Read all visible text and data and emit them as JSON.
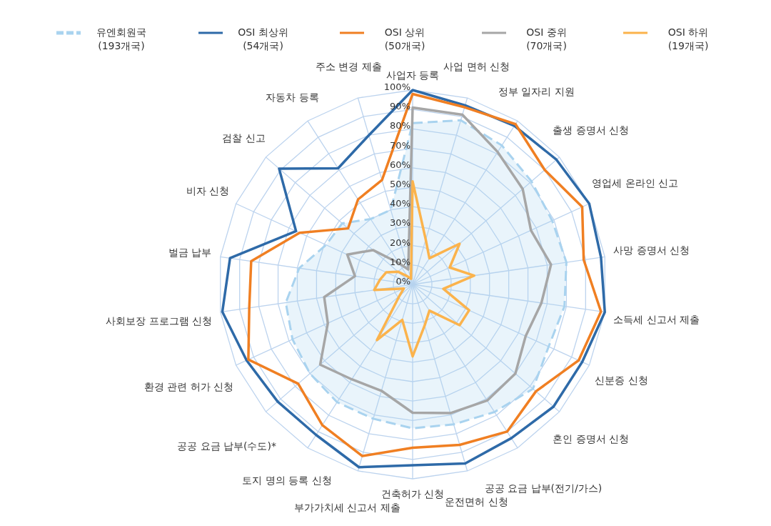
{
  "chart_data": {
    "type": "radar",
    "categories": [
      "사업자 등록",
      "사업 면허 신청",
      "정부 일자리 지원",
      "출생 증명서 신청",
      "영업세 온라인 신고",
      "사망 증명서 신청",
      "소득세 신고서 제출",
      "신분증 신청",
      "혼인 증명서 신청",
      "공공 요금 납부(전기/가스)",
      "운전면허 신청",
      "건축허가 신청",
      "부가가치세 신고서 제출",
      "토지 명의 등록 신청",
      "공공 요금 납부(수도)*",
      "환경 관련 허가 신청",
      "사회보장 프로그램 신청",
      "벌금 납부",
      "비자 신청",
      "검찰 신고",
      "자동차 등록",
      "주소 변경 제출"
    ],
    "series": [
      {
        "name": "유엔회원국 (193개국)",
        "type": "area",
        "color": "#a9d3ef",
        "line_style": "dashed",
        "values": [
          83,
          88,
          85,
          81,
          79,
          80,
          79,
          77,
          82,
          78,
          75,
          74,
          72,
          72,
          70,
          68,
          66,
          59,
          49,
          48,
          40,
          40
        ]
      },
      {
        "name": "OSI 최상위 (54개국)",
        "color": "#2e6aa8",
        "line_style": "solid",
        "values": [
          100,
          96,
          97,
          98,
          100,
          98,
          100,
          96,
          96,
          94,
          96,
          93,
          98,
          92,
          92,
          94,
          99,
          95,
          66,
          91,
          71,
          80
        ]
      },
      {
        "name": "OSI 상위 (50개국)",
        "color": "#f07f22",
        "line_style": "solid",
        "values": [
          98,
          95,
          98,
          90,
          96,
          89,
          98,
          94,
          84,
          90,
          86,
          84,
          92,
          86,
          78,
          93,
          85,
          84,
          64,
          44,
          52,
          56
        ]
      },
      {
        "name": "OSI 중위 (70개국)",
        "color": "#a6a6a6",
        "line_style": "solid",
        "values": [
          91,
          91,
          81,
          75,
          67,
          72,
          67,
          64,
          70,
          71,
          69,
          66,
          57,
          58,
          63,
          48,
          46,
          30,
          37,
          27,
          13,
          8
        ]
      },
      {
        "name": "OSI 하위 (19개국)",
        "color": "#fbb34c",
        "line_style": "solid",
        "values": [
          53,
          24,
          16,
          32,
          21,
          32,
          16,
          32,
          32,
          16,
          22,
          37,
          19,
          34,
          9,
          5,
          20,
          17,
          15,
          10,
          5,
          3
        ]
      }
    ],
    "ylim": [
      0,
      100
    ],
    "yticks": [
      {
        "value": 0,
        "label": "0%"
      },
      {
        "value": 10,
        "label": "10%"
      },
      {
        "value": 20,
        "label": "20%"
      },
      {
        "value": 30,
        "label": "30%"
      },
      {
        "value": 40,
        "label": "40%"
      },
      {
        "value": 50,
        "label": "50%"
      },
      {
        "value": 60,
        "label": "60%"
      },
      {
        "value": 70,
        "label": "70%"
      },
      {
        "value": 80,
        "label": "80%"
      },
      {
        "value": 90,
        "label": "90%"
      },
      {
        "value": 100,
        "label": "100%"
      }
    ],
    "grid": true,
    "legend": "top",
    "marker": "none"
  }
}
